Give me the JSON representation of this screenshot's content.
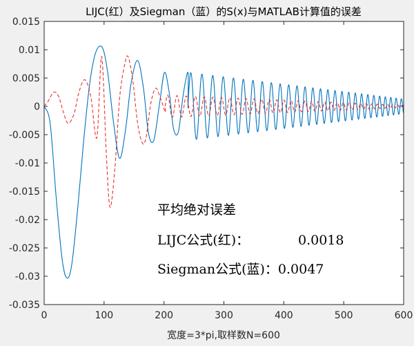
{
  "chart_data": {
    "type": "line",
    "title": "LIJC(红）及Siegman（蓝）的S(x)与MATLAB计算值的误差",
    "xlabel": "宽度=3*pi,取样数N=600",
    "ylabel": "",
    "xlim": [
      0,
      600
    ],
    "ylim": [
      -0.035,
      0.015
    ],
    "xticks": [
      0,
      100,
      200,
      300,
      400,
      500,
      600
    ],
    "yticks": [
      0.015,
      0.01,
      0.005,
      0,
      -0.005,
      -0.01,
      -0.015,
      -0.02,
      -0.025,
      -0.03,
      -0.035
    ],
    "ytick_labels": [
      "0.015",
      "0.01",
      "0.005",
      "0",
      "-0.005",
      "-0.01",
      "-0.015",
      "-0.02",
      "-0.025",
      "-0.03",
      "-0.035"
    ],
    "grid": false,
    "series": [
      {
        "color": "#0072bd",
        "style": "solid",
        "points": [
          [
            0,
            0
          ],
          [
            10,
            -0.003
          ],
          [
            20,
            -0.016
          ],
          [
            30,
            -0.027
          ],
          [
            38,
            -0.0303
          ],
          [
            46,
            -0.028
          ],
          [
            56,
            -0.018
          ],
          [
            66,
            -0.006
          ],
          [
            76,
            0.004
          ],
          [
            86,
            0.0095
          ],
          [
            97,
            0.0104
          ],
          [
            106,
            0.006
          ],
          [
            116,
            -0.003
          ],
          [
            126,
            -0.0092
          ],
          [
            136,
            -0.004
          ],
          [
            145,
            0.004
          ],
          [
            156,
            0.0081
          ],
          [
            166,
            0.003
          ],
          [
            174,
            -0.0047
          ],
          [
            183,
            -0.006
          ],
          [
            193,
            0.0008
          ],
          [
            201,
            0.006
          ],
          [
            209,
            0.0022
          ],
          [
            216,
            -0.004
          ],
          [
            224,
            -0.0045
          ],
          [
            232,
            0.002
          ],
          [
            240,
            0.006
          ]
        ]
      },
      {
        "color": "#e6312d",
        "style": "dashed",
        "points": [
          [
            0,
            0
          ],
          [
            6,
            0.0008
          ],
          [
            16,
            0.0025
          ],
          [
            24,
            0.0018
          ],
          [
            32,
            -0.001
          ],
          [
            40,
            -0.003
          ],
          [
            50,
            -0.0013
          ],
          [
            58,
            0.0025
          ],
          [
            68,
            0.0047
          ],
          [
            78,
            0.0016
          ],
          [
            88,
            -0.0055
          ],
          [
            96,
            0.0088
          ],
          [
            104,
            -0.009
          ],
          [
            110,
            -0.0178
          ],
          [
            118,
            -0.011
          ],
          [
            126,
            0.0015
          ],
          [
            134,
            0.0072
          ],
          [
            140,
            0.0088
          ],
          [
            148,
            0.0045
          ],
          [
            156,
            -0.003
          ],
          [
            164,
            -0.0065
          ],
          [
            170,
            -0.0055
          ],
          [
            178,
            0.0005
          ],
          [
            186,
            0.0032
          ],
          [
            194,
            0.0015
          ],
          [
            202,
            -0.001
          ]
        ]
      }
    ],
    "series_tail": {
      "blue": {
        "from_x": 240,
        "to_x": 600,
        "period_start": 19,
        "period_end": 8.4,
        "amp_start": 0.006,
        "amp_end": 0.0013
      },
      "red": {
        "from_x": 202,
        "to_x": 600,
        "period_start": 16,
        "period_end": 8,
        "amp_start": 0.002,
        "amp_end": 0.0002
      }
    },
    "annotations": [
      "平均绝对误差",
      "LIJC公式(红)：",
      "0.0018",
      "Siegman公式(蓝)：0.0047"
    ]
  }
}
